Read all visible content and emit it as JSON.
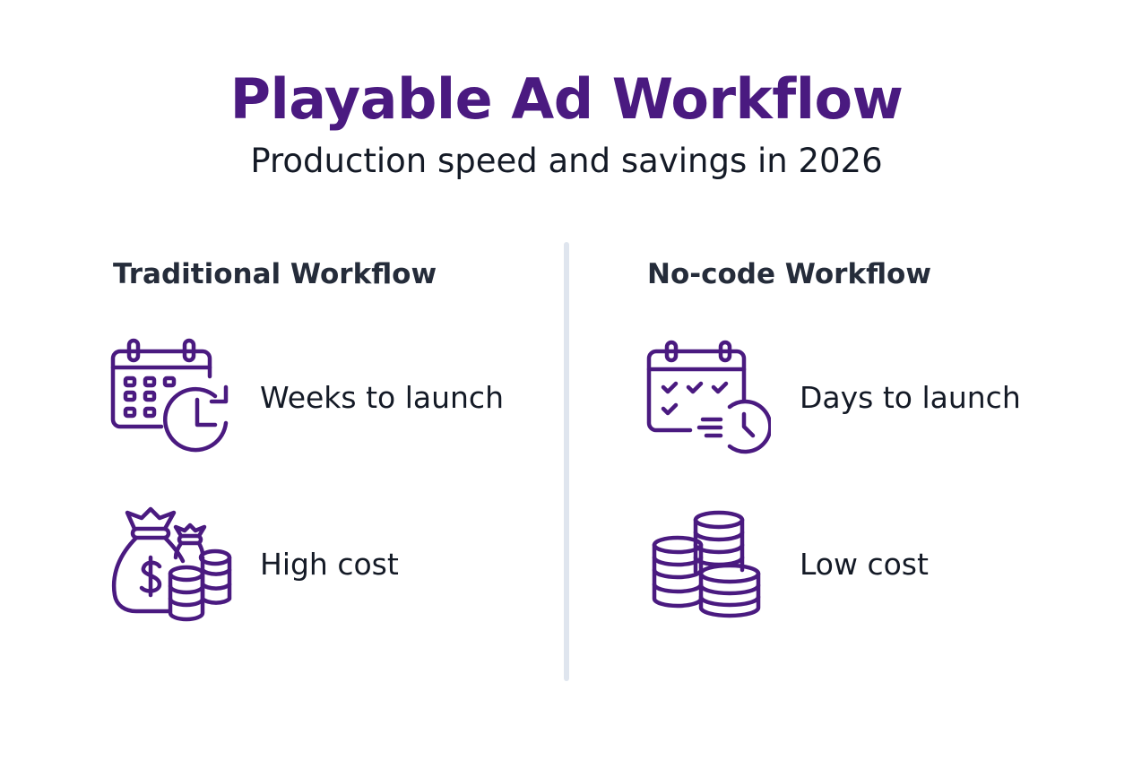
{
  "header": {
    "title": "Playable Ad Workflow",
    "subtitle": "Production speed and savings in 2026"
  },
  "colors": {
    "accent": "#4a1a80",
    "divider": "#dfe5ee",
    "text": "#141a26"
  },
  "columns": [
    {
      "heading": "Traditional Workflow",
      "items": [
        {
          "icon": "calendar-clock-icon",
          "label": "Weeks to launch"
        },
        {
          "icon": "money-bags-icon",
          "label": "High cost"
        }
      ]
    },
    {
      "heading": "No-code Workflow",
      "items": [
        {
          "icon": "calendar-check-fast-clock-icon",
          "label": "Days to launch"
        },
        {
          "icon": "coin-stacks-icon",
          "label": "Low cost"
        }
      ]
    }
  ]
}
